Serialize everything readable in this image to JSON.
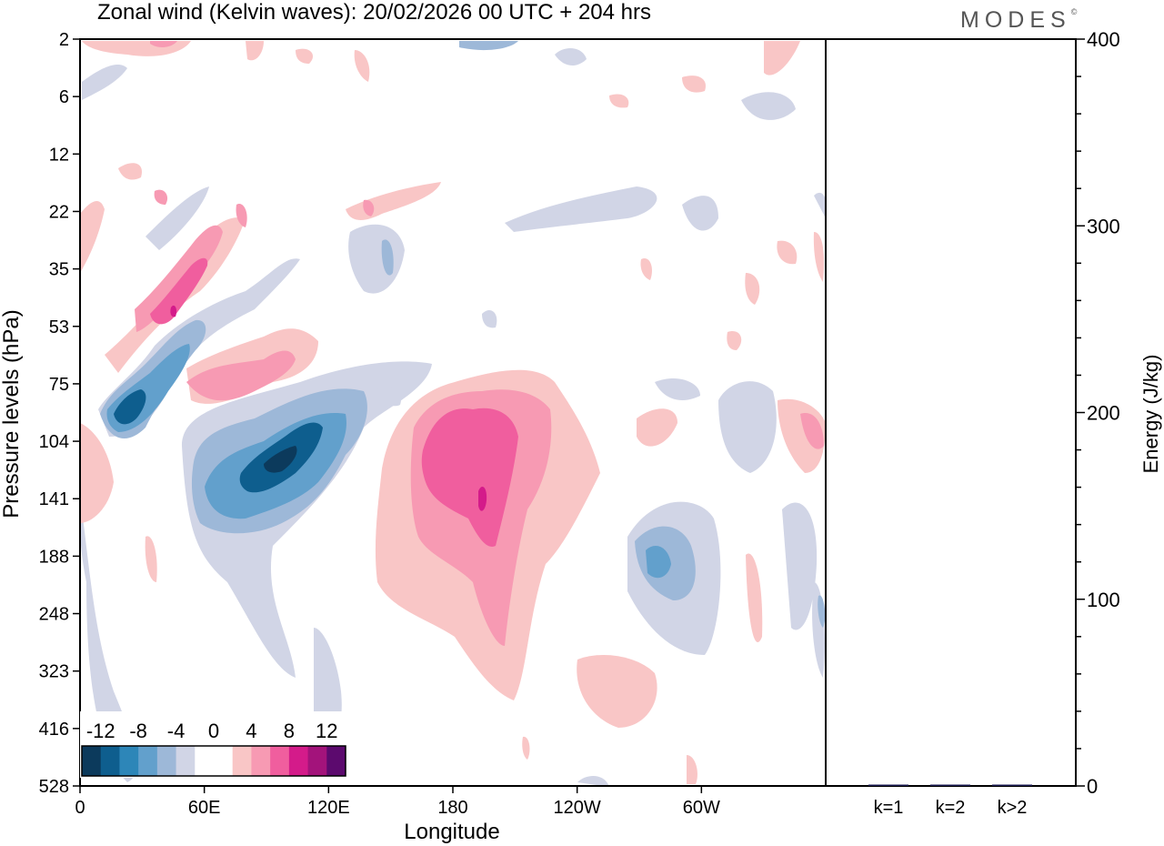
{
  "header": {
    "title": "Zonal wind (Kelvin waves):  20/02/2026  00 UTC  + 204 hrs",
    "logo": "MODES",
    "logo_mark": "©"
  },
  "chart_data": [
    {
      "type": "heatmap",
      "title": "Zonal wind (Kelvin waves):  20/02/2026  00 UTC  + 204 hrs",
      "xlabel": "Longitude",
      "ylabel": "Pressure levels (hPa)",
      "x_ticks": [
        "0",
        "60E",
        "120E",
        "180",
        "120W",
        "60W"
      ],
      "y_ticks": [
        "2",
        "6",
        "12",
        "22",
        "35",
        "53",
        "75",
        "104",
        "141",
        "188",
        "248",
        "323",
        "416",
        "528"
      ],
      "colorbar": {
        "labels": [
          "-12",
          "-8",
          "-4",
          "0",
          "4",
          "8",
          "12"
        ],
        "colors": [
          "#0c3a5c",
          "#0e5e8e",
          "#2d86b8",
          "#62a0cc",
          "#9db8d8",
          "#d1d5e6",
          "#ffffff",
          "#ffffff",
          "#f9c6c6",
          "#f79ab3",
          "#f05e9e",
          "#d41b8a",
          "#a3137b",
          "#5c0a6e"
        ]
      },
      "features": [
        {
          "name": "negative-anomaly-lower-trop-west",
          "lon": 95,
          "level": "141",
          "min_value": -12
        },
        {
          "name": "negative-anomaly-upper",
          "lon": 30,
          "level": "75",
          "min_value": -12
        },
        {
          "name": "positive-anomaly-dateline",
          "lon": 190,
          "level": "141",
          "max_value": 10
        },
        {
          "name": "positive-anomaly-strat",
          "lon": 40,
          "level": "35",
          "max_value": 8
        },
        {
          "name": "negative-anomaly-east",
          "lon": 290,
          "level": "188",
          "min_value": -6
        }
      ]
    },
    {
      "type": "bar",
      "ylabel": "Energy (J/kg)",
      "categories": [
        "k=1",
        "k=2",
        "k>2"
      ],
      "values": [
        0.6,
        0.4,
        0.5
      ],
      "ylim": [
        0,
        400
      ],
      "y_ticks": [
        "0",
        "100",
        "200",
        "300",
        "400"
      ]
    }
  ]
}
